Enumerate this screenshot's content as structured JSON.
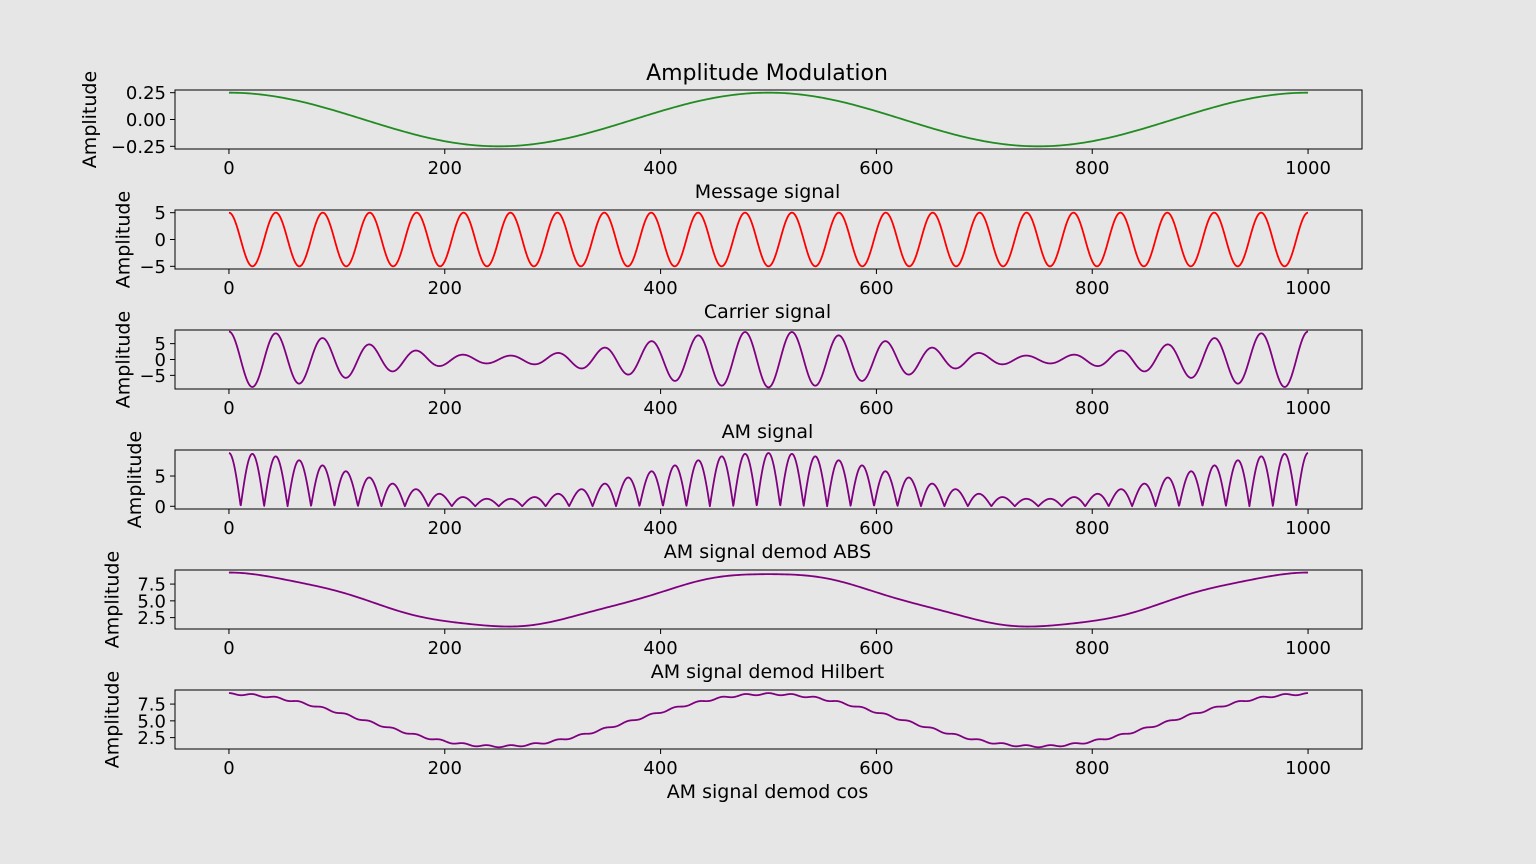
{
  "figure": {
    "title": "Amplitude Modulation",
    "background": "#e6e6e6"
  },
  "chart_data": [
    {
      "type": "line",
      "xlabel": "Message signal",
      "ylabel": "Amplitude",
      "xlim": [
        -50,
        1050
      ],
      "ylim": [
        -0.275,
        0.275
      ],
      "xticks": [
        0,
        200,
        400,
        600,
        800,
        1000
      ],
      "xtick_labels": [
        "0",
        "200",
        "400",
        "600",
        "800",
        "1000"
      ],
      "yticks": [
        0.25,
        0,
        -0.25
      ],
      "ytick_labels": [
        "0.25",
        "0.00",
        "−0.25"
      ],
      "color": "#228b22",
      "signal": "message",
      "series": [
        {
          "x_range": [
            0,
            1000
          ],
          "amplitude": 0.25,
          "cycles_in_range": 2
        }
      ]
    },
    {
      "type": "line",
      "xlabel": "Carrier signal",
      "ylabel": "Amplitude",
      "xlim": [
        -50,
        1050
      ],
      "ylim": [
        -5.5,
        5.5
      ],
      "xticks": [
        0,
        200,
        400,
        600,
        800,
        1000
      ],
      "xtick_labels": [
        "0",
        "200",
        "400",
        "600",
        "800",
        "1000"
      ],
      "yticks": [
        5,
        0,
        -5
      ],
      "ytick_labels": [
        "5",
        "0",
        "−5"
      ],
      "color": "#ff0000",
      "signal": "carrier",
      "series": [
        {
          "x_range": [
            0,
            1000
          ],
          "amplitude": 5,
          "cycles_in_range": 23
        }
      ]
    },
    {
      "type": "line",
      "xlabel": "AM signal",
      "ylabel": "Amplitude",
      "xlim": [
        -50,
        1050
      ],
      "ylim": [
        -9.3,
        9.3
      ],
      "xticks": [
        0,
        200,
        400,
        600,
        800,
        1000
      ],
      "xtick_labels": [
        "0",
        "200",
        "400",
        "600",
        "800",
        "1000"
      ],
      "yticks": [
        5,
        0,
        -5
      ],
      "ytick_labels": [
        "5",
        "0",
        "−5"
      ],
      "color": "#800080",
      "signal": "am",
      "series": [
        {
          "x_range": [
            0,
            1000
          ],
          "peak_amplitude": 8.8,
          "min_amplitude": 1.2
        }
      ]
    },
    {
      "type": "line",
      "xlabel": "AM signal demod ABS",
      "ylabel": "Amplitude",
      "xlim": [
        -50,
        1050
      ],
      "ylim": [
        -0.45,
        9.3
      ],
      "xticks": [
        0,
        200,
        400,
        600,
        800,
        1000
      ],
      "xtick_labels": [
        "0",
        "200",
        "400",
        "600",
        "800",
        "1000"
      ],
      "yticks": [
        5,
        0
      ],
      "ytick_labels": [
        "5",
        "0"
      ],
      "color": "#800080",
      "signal": "abs",
      "series": [
        {
          "x_range": [
            0,
            1000
          ],
          "peak_amplitude": 8.8
        }
      ]
    },
    {
      "type": "line",
      "xlabel": "AM signal demod Hilbert",
      "ylabel": "Amplitude",
      "xlim": [
        -50,
        1050
      ],
      "ylim": [
        0.8,
        9.6
      ],
      "xticks": [
        0,
        200,
        400,
        600,
        800,
        1000
      ],
      "xtick_labels": [
        "0",
        "200",
        "400",
        "600",
        "800",
        "1000"
      ],
      "yticks": [
        7.5,
        5.0,
        2.5
      ],
      "ytick_labels": [
        "7.5",
        "5.0",
        "2.5"
      ],
      "color": "#800080",
      "signal": "hilbert",
      "series": [
        {
          "x_range": [
            0,
            1000
          ],
          "max": 9.1,
          "min": 1.2
        }
      ]
    },
    {
      "type": "line",
      "xlabel": "AM signal demod cos",
      "ylabel": "Amplitude",
      "xlim": [
        -50,
        1050
      ],
      "ylim": [
        0.8,
        9.6
      ],
      "xticks": [
        0,
        200,
        400,
        600,
        800,
        1000
      ],
      "xtick_labels": [
        "0",
        "200",
        "400",
        "600",
        "800",
        "1000"
      ],
      "yticks": [
        7.5,
        5.0,
        2.5
      ],
      "ytick_labels": [
        "7.5",
        "5.0",
        "2.5"
      ],
      "color": "#800080",
      "signal": "demodcos",
      "series": [
        {
          "x_range": [
            0,
            1000
          ],
          "max": 9.0,
          "min": 1.2
        }
      ]
    }
  ]
}
